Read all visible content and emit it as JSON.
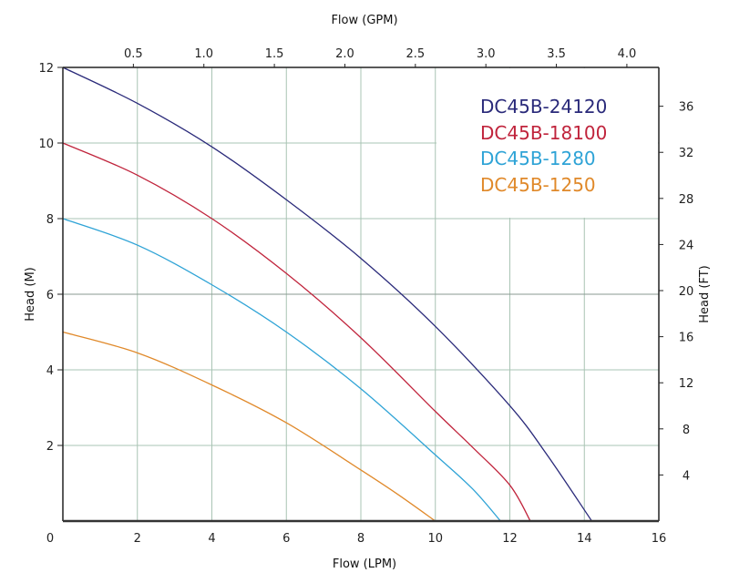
{
  "chart_data": {
    "type": "line",
    "xlabel": "Flow (LPM)",
    "x2label": "Flow (GPM)",
    "ylabel": "Head (M)",
    "y2label": "Head (FT)",
    "xlim": [
      0,
      16
    ],
    "ylim": [
      0,
      12
    ],
    "x_ticks": [
      0,
      2,
      4,
      6,
      8,
      10,
      12,
      14,
      16
    ],
    "y_ticks": [
      2,
      4,
      6,
      8,
      10,
      12
    ],
    "y_tick_zero": "0",
    "x2_ticks": [
      "0.5",
      "1.0",
      "1.5",
      "2.0",
      "2.5",
      "3.0",
      "3.5",
      "4.0"
    ],
    "y2_ticks": [
      "4",
      "8",
      "12",
      "16",
      "20",
      "24",
      "28",
      "32",
      "36"
    ],
    "grid": true,
    "legend_position": "top-right",
    "series": [
      {
        "name": "DC45B-24120",
        "color": "#2a2a7a",
        "x": [
          0,
          2,
          4,
          6,
          8,
          10,
          12,
          13,
          14.2
        ],
        "y": [
          12,
          11.05,
          9.9,
          8.5,
          6.95,
          5.15,
          3.05,
          1.75,
          0
        ]
      },
      {
        "name": "DC45B-18100",
        "color": "#c0243c",
        "x": [
          0,
          2,
          4,
          6,
          8,
          10,
          11,
          12,
          12.55
        ],
        "y": [
          10,
          9.15,
          8.0,
          6.55,
          4.85,
          2.9,
          1.95,
          0.95,
          0
        ]
      },
      {
        "name": "DC45B-1280",
        "color": "#2ea3d6",
        "x": [
          0,
          2,
          4,
          6,
          8,
          10,
          11,
          11.75
        ],
        "y": [
          8,
          7.3,
          6.25,
          5.0,
          3.5,
          1.75,
          0.85,
          0
        ]
      },
      {
        "name": "DC45B-1250",
        "color": "#e0892a",
        "x": [
          0,
          2,
          4,
          6,
          8,
          9,
          10
        ],
        "y": [
          5,
          4.45,
          3.6,
          2.6,
          1.35,
          0.7,
          0
        ]
      }
    ]
  }
}
